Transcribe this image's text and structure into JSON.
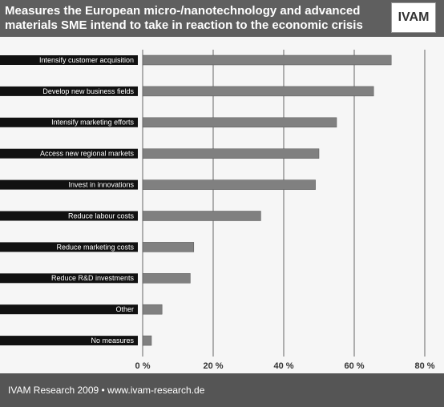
{
  "chart_data": {
    "type": "bar",
    "orientation": "horizontal",
    "title": "Measures the European micro-/nanotechnology and advanced materials SME intend to take in reaction to the economic crisis",
    "logo": "IVAM",
    "source": "IVAM Research 2009 • www.ivam-research.de",
    "categories": [
      "Intensify customer acquisition",
      "Develop new business fields",
      "Intensify marketing efforts",
      "Access new regional markets",
      "Invest in innovations",
      "Reduce labour costs",
      "Reduce marketing costs",
      "Reduce R&D investments",
      "Other",
      "No measures"
    ],
    "values": [
      70.5,
      65.5,
      55,
      50,
      49,
      33.5,
      14.5,
      13.5,
      5.5,
      2.5
    ],
    "color": "#808080",
    "xlim": [
      0,
      80
    ],
    "xticks": [
      {
        "value": 0,
        "label": "0 %"
      },
      {
        "value": 20,
        "label": "20 %"
      },
      {
        "value": 40,
        "label": "40 %"
      },
      {
        "value": 60,
        "label": "60 %"
      },
      {
        "value": 80,
        "label": "80 %"
      }
    ],
    "grid": true
  }
}
